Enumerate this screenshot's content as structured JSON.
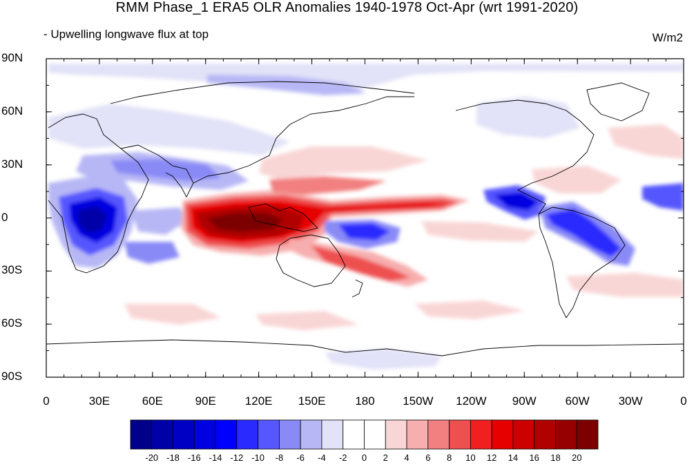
{
  "title": "RMM Phase_1 ERA5 OLR Anomalies 1940-1978 Oct-Apr (wrt 1991-2020)",
  "subtitle": "- Upwelling longwave flux at top",
  "units": "W/m2",
  "map": {
    "projection": "cylindrical equidistant",
    "lon_range": [
      0,
      360
    ],
    "lat_range": [
      -90,
      90
    ],
    "lat_ticks": [
      "90N",
      "60N",
      "30N",
      "0",
      "30S",
      "60S",
      "90S"
    ],
    "lon_ticks": [
      "0",
      "30E",
      "60E",
      "90E",
      "120E",
      "150E",
      "180",
      "150W",
      "120W",
      "90W",
      "60W",
      "30W",
      "0"
    ]
  },
  "colorbar": {
    "labels": [
      "-20",
      "-18",
      "-16",
      "-14",
      "-12",
      "-10",
      "-8",
      "-6",
      "-4",
      "-2",
      "0",
      "2",
      "4",
      "6",
      "8",
      "10",
      "12",
      "14",
      "16",
      "18",
      "20"
    ],
    "colors": [
      "#00008b",
      "#0000a8",
      "#0000c4",
      "#0000e0",
      "#0000ff",
      "#2a2aff",
      "#5757ff",
      "#8a8af7",
      "#b7b7f5",
      "#e2e2f8",
      "#ffffff",
      "#ffffff",
      "#f9d6d6",
      "#f7aeae",
      "#f28080",
      "#ee5050",
      "#f02020",
      "#e60000",
      "#cc0000",
      "#b00000",
      "#960000",
      "#7d0000"
    ]
  },
  "anomaly_features": [
    {
      "region": "Maritime Continent / Western Pacific",
      "sign": "positive",
      "peak": 20
    },
    {
      "region": "Central Pacific ITCZ band",
      "sign": "positive",
      "peak": 14
    },
    {
      "region": "South Pacific Convergence Zone",
      "sign": "positive",
      "peak": 8
    },
    {
      "region": "Central Africa",
      "sign": "negative",
      "peak": -20
    },
    {
      "region": "Central America / northern South America",
      "sign": "negative",
      "peak": -16
    },
    {
      "region": "South Atlantic Convergence Zone",
      "sign": "negative",
      "peak": -14
    },
    {
      "region": "Tropical western Pacific south of equator (160E-170W)",
      "sign": "negative",
      "peak": -12
    },
    {
      "region": "Tropical Atlantic",
      "sign": "negative",
      "peak": -10
    }
  ]
}
